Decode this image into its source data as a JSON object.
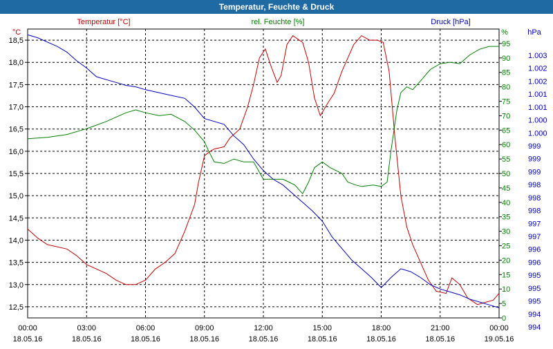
{
  "title": "Temperatur, Feuchte & Druck",
  "colors": {
    "titlebar": "#1f6aa3",
    "temperature": "#c00000",
    "humidity": "#008000",
    "pressure": "#0000c0",
    "grid": "#000000"
  },
  "chart_data": {
    "type": "line",
    "grid": true,
    "x": {
      "ticks": [
        {
          "time": "00:00",
          "date": "18.05.16"
        },
        {
          "time": "03:00",
          "date": "18.05.16"
        },
        {
          "time": "06:00",
          "date": "18.05.16"
        },
        {
          "time": "09:00",
          "date": "18.05.16"
        },
        {
          "time": "12:00",
          "date": "18.05.16"
        },
        {
          "time": "15:00",
          "date": "18.05.16"
        },
        {
          "time": "18:00",
          "date": "18.05.16"
        },
        {
          "time": "21:00",
          "date": "18.05.16"
        },
        {
          "time": "00:00",
          "date": "19.05.16"
        }
      ],
      "range_hours": [
        0,
        24
      ]
    },
    "axes": {
      "temperature": {
        "label": "Temperatur [°C]",
        "unit": "°C",
        "range": [
          12.25,
          18.75
        ],
        "ticks": [
          "12,5",
          "13,0",
          "13,5",
          "14,0",
          "14,5",
          "15,0",
          "15,5",
          "16,0",
          "16,5",
          "17,0",
          "17,5",
          "18,0",
          "18,5"
        ]
      },
      "humidity": {
        "label": "rel. Feuchte [%]",
        "unit": "%",
        "range": [
          0,
          100
        ],
        "ticks": [
          "0",
          "5",
          "10",
          "15",
          "20",
          "25",
          "30",
          "35",
          "40",
          "45",
          "50",
          "55",
          "60",
          "65",
          "70",
          "75",
          "80",
          "85",
          "90",
          "95"
        ]
      },
      "pressure": {
        "label": "Druck [hPa]",
        "unit": "hPa",
        "range": [
          993.2,
          1003.2
        ],
        "ticks": [
          "994",
          "994",
          "995",
          "995",
          "995",
          "996",
          "996",
          "997",
          "997",
          "998",
          "998",
          "998",
          "999",
          "999",
          "999",
          "1.000",
          "1.000",
          "1.001",
          "1.001",
          "1.002",
          "1.002",
          "1.003"
        ]
      }
    },
    "series": [
      {
        "name": "Temperatur [°C]",
        "axis": "temperature",
        "points": [
          [
            0,
            14.25
          ],
          [
            0.5,
            14.05
          ],
          [
            1,
            13.9
          ],
          [
            2,
            13.8
          ],
          [
            2.5,
            13.65
          ],
          [
            3,
            13.45
          ],
          [
            4,
            13.25
          ],
          [
            4.5,
            13.1
          ],
          [
            5,
            13.0
          ],
          [
            5.5,
            13.0
          ],
          [
            6,
            13.1
          ],
          [
            6.5,
            13.35
          ],
          [
            7,
            13.5
          ],
          [
            7.5,
            13.7
          ],
          [
            8,
            14.2
          ],
          [
            8.5,
            14.8
          ],
          [
            8.7,
            15.3
          ],
          [
            9,
            15.9
          ],
          [
            9.3,
            16.0
          ],
          [
            9.5,
            16.05
          ],
          [
            10,
            16.1
          ],
          [
            10.3,
            16.3
          ],
          [
            10.8,
            16.5
          ],
          [
            11.2,
            17.0
          ],
          [
            11.5,
            17.5
          ],
          [
            11.8,
            18.1
          ],
          [
            12.1,
            18.3
          ],
          [
            12.4,
            17.9
          ],
          [
            12.7,
            17.55
          ],
          [
            12.9,
            17.7
          ],
          [
            13.2,
            18.4
          ],
          [
            13.5,
            18.6
          ],
          [
            14,
            18.45
          ],
          [
            14.3,
            18.0
          ],
          [
            14.6,
            17.2
          ],
          [
            14.9,
            16.8
          ],
          [
            15.3,
            17.1
          ],
          [
            15.6,
            17.3
          ],
          [
            16,
            17.8
          ],
          [
            16.3,
            18.1
          ],
          [
            16.6,
            18.4
          ],
          [
            17,
            18.6
          ],
          [
            17.4,
            18.5
          ],
          [
            17.8,
            18.5
          ],
          [
            18.1,
            18.45
          ],
          [
            18.4,
            17.8
          ],
          [
            18.7,
            16.3
          ],
          [
            19.0,
            15.0
          ],
          [
            19.3,
            14.3
          ],
          [
            19.6,
            13.9
          ],
          [
            20,
            13.5
          ],
          [
            20.4,
            13.1
          ],
          [
            20.8,
            12.85
          ],
          [
            21.3,
            12.8
          ],
          [
            21.6,
            13.15
          ],
          [
            22,
            13.0
          ],
          [
            22.4,
            12.7
          ],
          [
            22.9,
            12.55
          ],
          [
            23.3,
            12.6
          ],
          [
            23.7,
            12.65
          ],
          [
            24,
            12.8
          ]
        ]
      },
      {
        "name": "rel. Feuchte [%]",
        "axis": "humidity",
        "points": [
          [
            0,
            62
          ],
          [
            1,
            62.5
          ],
          [
            2,
            63.5
          ],
          [
            3,
            65.5
          ],
          [
            4,
            68
          ],
          [
            5,
            71
          ],
          [
            5.5,
            72
          ],
          [
            6,
            71
          ],
          [
            6.7,
            70
          ],
          [
            7.3,
            70.5
          ],
          [
            8,
            68
          ],
          [
            8.5,
            65
          ],
          [
            9,
            61
          ],
          [
            9.2,
            58
          ],
          [
            9.5,
            54
          ],
          [
            10,
            53.5
          ],
          [
            10.5,
            55
          ],
          [
            11,
            54
          ],
          [
            11.5,
            54
          ],
          [
            12,
            48
          ],
          [
            12.5,
            48
          ],
          [
            13,
            48
          ],
          [
            13.3,
            47
          ],
          [
            13.6,
            46
          ],
          [
            14,
            43
          ],
          [
            14.3,
            47
          ],
          [
            14.6,
            52
          ],
          [
            15,
            54
          ],
          [
            15.4,
            52
          ],
          [
            16,
            50
          ],
          [
            16.3,
            47
          ],
          [
            16.7,
            46
          ],
          [
            17,
            45.5
          ],
          [
            17.6,
            46
          ],
          [
            18,
            45.5
          ],
          [
            18.3,
            47
          ],
          [
            18.5,
            58
          ],
          [
            18.8,
            72
          ],
          [
            19,
            78
          ],
          [
            19.3,
            80
          ],
          [
            19.6,
            79
          ],
          [
            20,
            82
          ],
          [
            20.5,
            86
          ],
          [
            21,
            88
          ],
          [
            21.5,
            88.5
          ],
          [
            22,
            88
          ],
          [
            22.5,
            91
          ],
          [
            23,
            93
          ],
          [
            23.5,
            94
          ],
          [
            24,
            94
          ]
        ]
      },
      {
        "name": "Druck [hPa]",
        "axis": "pressure",
        "points": [
          [
            0,
            1003.0
          ],
          [
            0.5,
            1002.9
          ],
          [
            1,
            1002.75
          ],
          [
            1.5,
            1002.6
          ],
          [
            2,
            1002.4
          ],
          [
            2.5,
            1002.1
          ],
          [
            3,
            1001.85
          ],
          [
            3.5,
            1001.55
          ],
          [
            4,
            1001.45
          ],
          [
            4.5,
            1001.35
          ],
          [
            5,
            1001.25
          ],
          [
            5.5,
            1001.2
          ],
          [
            6,
            1001.1
          ],
          [
            7,
            1000.95
          ],
          [
            8,
            1000.8
          ],
          [
            8.5,
            1000.5
          ],
          [
            9,
            1000.1
          ],
          [
            10,
            999.9
          ],
          [
            10.5,
            999.5
          ],
          [
            11,
            999.2
          ],
          [
            11.5,
            998.7
          ],
          [
            12,
            998.3
          ],
          [
            12.5,
            998.0
          ],
          [
            13,
            997.8
          ],
          [
            13.5,
            997.5
          ],
          [
            14,
            997.2
          ],
          [
            14.5,
            996.9
          ],
          [
            15,
            996.55
          ],
          [
            15.5,
            996.0
          ],
          [
            16,
            995.6
          ],
          [
            16.5,
            995.2
          ],
          [
            17,
            994.9
          ],
          [
            17.5,
            994.6
          ],
          [
            18,
            994.25
          ],
          [
            18.5,
            994.6
          ],
          [
            19,
            994.9
          ],
          [
            19.5,
            994.8
          ],
          [
            20,
            994.6
          ],
          [
            20.5,
            994.35
          ],
          [
            21,
            994.2
          ],
          [
            21.5,
            994.1
          ],
          [
            22,
            994.0
          ],
          [
            22.5,
            993.85
          ],
          [
            23,
            993.75
          ],
          [
            23.5,
            993.65
          ],
          [
            24,
            993.55
          ]
        ]
      }
    ]
  }
}
